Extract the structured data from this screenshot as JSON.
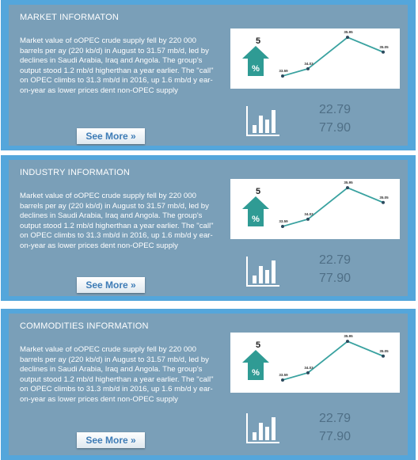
{
  "panels": [
    {
      "title": "MARKET INFORMATON",
      "body": "Market value of oOPEC crude supply fell by 220 000 barrels per ay (220 kb/d) in August to 31.57 mb/d, led by declines in Saudi Arabia, Iraq and Angola. The group's output stood 1.2 mb/d higherthan a year earlier. The \"call\" on OPEC climbs to 31.3 mb/d in 2016,  up 1.6 mb/d y ear-on-year as lower prices dent non-OPEC supply",
      "button_label": "See More »",
      "badge_number": "5",
      "badge_symbol": "%",
      "value_1": "22.79",
      "value_2": "77.90",
      "chart_data": {
        "type": "line",
        "x": [
          "1",
          "2",
          "3",
          "4"
        ],
        "series": [
          {
            "values": [
              33.59,
              34.03,
              35.95,
              35.05
            ]
          }
        ],
        "point_labels": [
          "33.59",
          "34.03",
          "35.95",
          "35.05"
        ],
        "ylim": [
          33.2,
          36.2
        ],
        "grid": false,
        "color": "#3aa2a0"
      }
    },
    {
      "title": "INDUSTRY INFORMATION",
      "body": "Market value of oOPEC crude supply fell by 220 000 barrels per ay (220 kb/d) in August to 31.57 mb/d, led by declines in Saudi Arabia, Iraq and Angola. The group's output stood 1.2 mb/d higherthan a year earlier. The \"call\" on OPEC climbs to 31.3 mb/d in 2016,  up 1.6 mb/d y ear-on-year as lower prices dent non-OPEC supply",
      "button_label": "See More »",
      "badge_number": "5",
      "badge_symbol": "%",
      "value_1": "22.79",
      "value_2": "77.90",
      "chart_data": {
        "type": "line",
        "x": [
          "1",
          "2",
          "3",
          "4"
        ],
        "series": [
          {
            "values": [
              33.59,
              34.03,
              35.95,
              35.05
            ]
          }
        ],
        "point_labels": [
          "33.59",
          "34.03",
          "35.95",
          "35.05"
        ],
        "ylim": [
          33.2,
          36.2
        ],
        "grid": false,
        "color": "#3aa2a0"
      }
    },
    {
      "title": "COMMODITIES INFORMATION",
      "body": "Market value of oOPEC crude supply fell by 220 000 barrels per ay (220 kb/d) in August to 31.57 mb/d, led by declines in Saudi Arabia, Iraq and Angola. The group's output stood 1.2 mb/d higherthan a year earlier. The \"call\" on OPEC climbs to 31.3 mb/d in 2016,  up 1.6 mb/d y ear-on-year as lower prices dent non-OPEC supply",
      "button_label": "See More »",
      "badge_number": "5",
      "badge_symbol": "%",
      "value_1": "22.79",
      "value_2": "77.90",
      "chart_data": {
        "type": "line",
        "x": [
          "1",
          "2",
          "3",
          "4"
        ],
        "series": [
          {
            "values": [
              33.59,
              34.03,
              35.95,
              35.05
            ]
          }
        ],
        "point_labels": [
          "33.59",
          "34.03",
          "35.95",
          "35.05"
        ],
        "ylim": [
          33.2,
          36.2
        ],
        "grid": false,
        "color": "#3aa2a0"
      }
    }
  ],
  "colors": {
    "frame": "#54a6db",
    "panel": "#7a9fb8",
    "badge": "#2f9b94",
    "line": "#3aa2a0",
    "value_text": "#4f6f86",
    "button_text": "#3e7cb6"
  },
  "icons": {
    "badge": "up-arrow-percent-icon",
    "bars": "bar-chart-icon"
  }
}
